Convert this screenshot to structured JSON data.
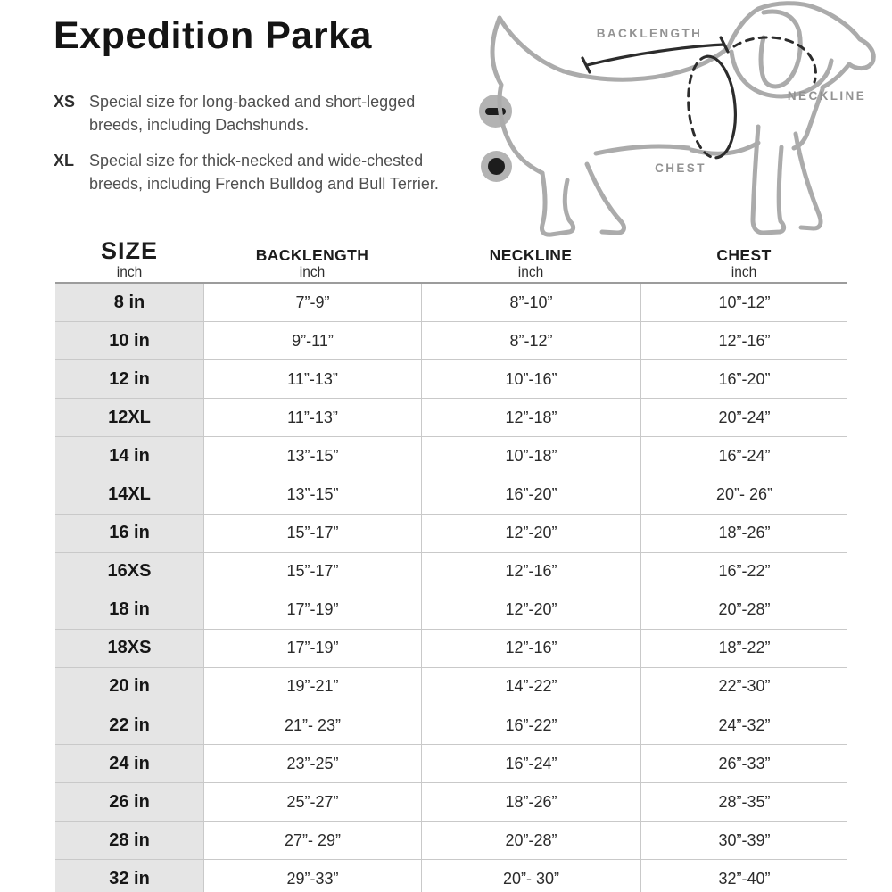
{
  "title": "Expedition Parka",
  "notes": [
    {
      "label": "XS",
      "text": "Special size for long-backed and short-legged breeds, including Dachshunds."
    },
    {
      "label": "XL",
      "text": "Special size for thick-necked and wide-chested breeds, including French Bulldog and Bull Terrier."
    }
  ],
  "legend": {
    "flat_icon": "dash-in-circle (flat measurement)",
    "girth_icon": "dot-in-circle (girth measurement)"
  },
  "diagram": {
    "backlength_label": "BACKLENGTH",
    "neckline_label": "NECKLINE",
    "chest_label": "CHEST"
  },
  "table": {
    "columns": [
      {
        "label": "SIZE",
        "unit": "inch"
      },
      {
        "label": "BACKLENGTH",
        "unit": "inch"
      },
      {
        "label": "NECKLINE",
        "unit": "inch"
      },
      {
        "label": "CHEST",
        "unit": "inch"
      }
    ],
    "rows": [
      {
        "size": "8 in",
        "backlength": "7”-9”",
        "neckline": "8”-10”",
        "chest": "10”-12”"
      },
      {
        "size": "10 in",
        "backlength": "9”-11”",
        "neckline": "8”-12”",
        "chest": "12”-16”"
      },
      {
        "size": "12 in",
        "backlength": "11”-13”",
        "neckline": "10”-16”",
        "chest": "16”-20”"
      },
      {
        "size": "12XL",
        "backlength": "11”-13”",
        "neckline": "12”-18”",
        "chest": "20”-24”"
      },
      {
        "size": "14 in",
        "backlength": "13”-15”",
        "neckline": "10”-18”",
        "chest": "16”-24”"
      },
      {
        "size": "14XL",
        "backlength": "13”-15”",
        "neckline": "16”-20”",
        "chest": "20”- 26”"
      },
      {
        "size": "16 in",
        "backlength": "15”-17”",
        "neckline": "12”-20”",
        "chest": "18”-26”"
      },
      {
        "size": "16XS",
        "backlength": "15”-17”",
        "neckline": "12”-16”",
        "chest": "16”-22”"
      },
      {
        "size": "18 in",
        "backlength": "17”-19”",
        "neckline": "12”-20”",
        "chest": "20”-28”"
      },
      {
        "size": "18XS",
        "backlength": "17”-19”",
        "neckline": "12”-16”",
        "chest": "18”-22”"
      },
      {
        "size": "20 in",
        "backlength": "19”-21”",
        "neckline": "14”-22”",
        "chest": "22”-30”"
      },
      {
        "size": "22 in",
        "backlength": "21”- 23”",
        "neckline": "16”-22”",
        "chest": "24”-32”"
      },
      {
        "size": "24 in",
        "backlength": "23”-25”",
        "neckline": "16”-24”",
        "chest": "26”-33”"
      },
      {
        "size": "26 in",
        "backlength": "25”-27”",
        "neckline": "18”-26”",
        "chest": "28”-35”"
      },
      {
        "size": "28 in",
        "backlength": "27”- 29”",
        "neckline": "20”-28”",
        "chest": "30”-39”"
      },
      {
        "size": "32 in",
        "backlength": "29”-33”",
        "neckline": "20”- 30”",
        "chest": "32”-40”"
      }
    ]
  },
  "colors": {
    "ink": "#1c1c1c",
    "note_text": "#4f4f4f",
    "diagram_outline": "#ababab",
    "diagram_label": "#939393",
    "measure_line": "#2c2c2c",
    "icon_circle": "#b3b3b3",
    "size_column_bg": "#e5e5e5",
    "row_divider": "#c9c9c9",
    "table_top_border": "#9c9c9c",
    "table_bottom_bar": "#565656"
  }
}
